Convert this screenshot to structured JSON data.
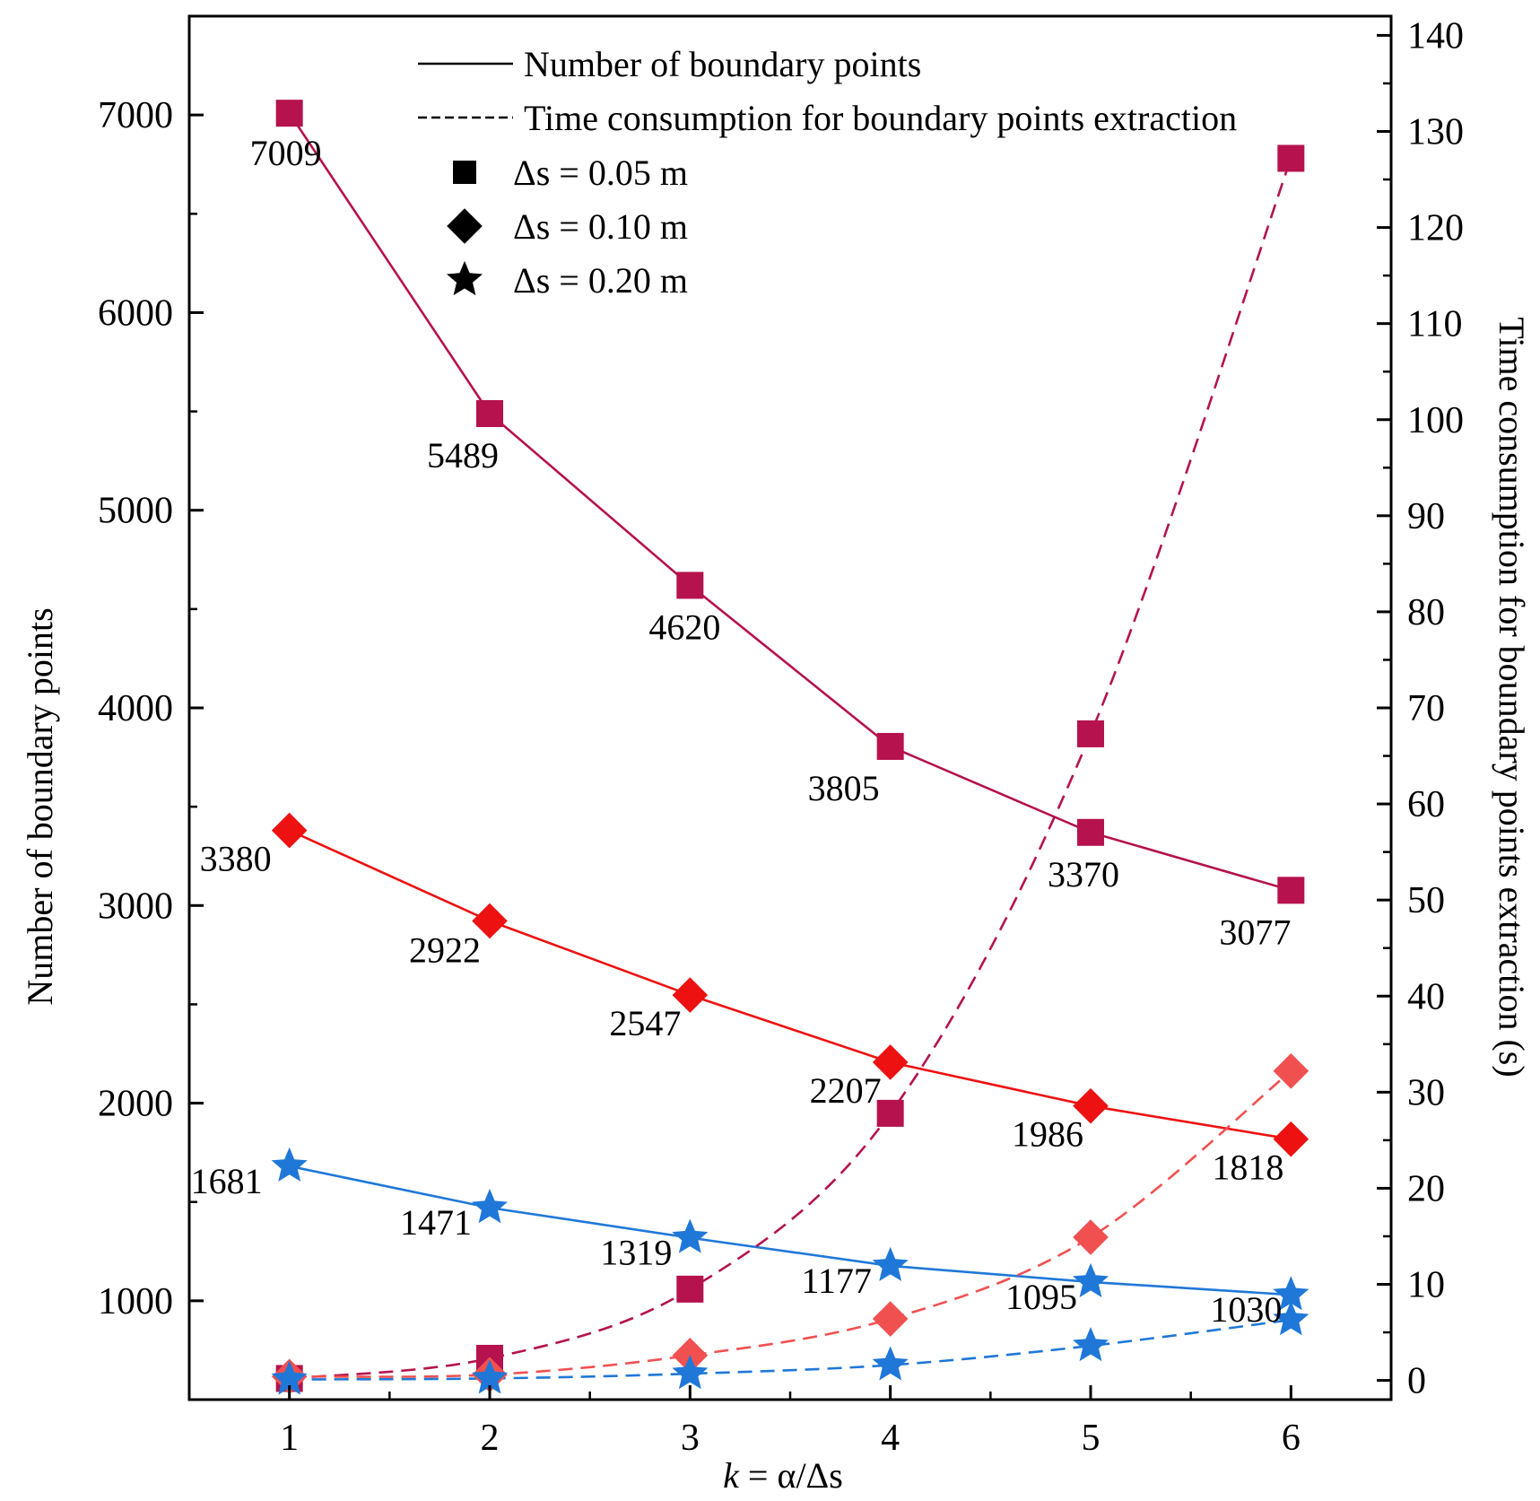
{
  "chart_data": {
    "type": "line",
    "x": [
      1,
      2,
      3,
      4,
      5,
      6
    ],
    "x_tick_labels": [
      "1",
      "2",
      "3",
      "4",
      "5",
      "6"
    ],
    "xlim": [
      0.5,
      6.5
    ],
    "xlabel_prefix": "k",
    "xlabel_suffix": " = α/Δs",
    "ylabel_left": "Number of boundary points",
    "ylabel_right": "Time consumption for boundary points extraction (s)",
    "ylim_left": [
      500,
      7500
    ],
    "ylim_right": [
      -2,
      142
    ],
    "left_ticks": [
      1000,
      2000,
      3000,
      4000,
      5000,
      6000,
      7000
    ],
    "left_tick_labels": [
      "1000",
      "2000",
      "3000",
      "4000",
      "5000",
      "6000",
      "7000"
    ],
    "right_ticks": [
      0,
      10,
      20,
      30,
      40,
      50,
      60,
      70,
      80,
      90,
      100,
      110,
      120,
      130,
      140
    ],
    "right_tick_labels": [
      "0",
      "10",
      "20",
      "30",
      "40",
      "50",
      "60",
      "70",
      "80",
      "90",
      "100",
      "110",
      "120",
      "130",
      "140"
    ],
    "colors": {
      "ds005": "#b5124e",
      "ds010": "#ee1111",
      "ds010_time": "#f05050",
      "ds020": "#1f78d8",
      "black": "#000000"
    },
    "legend": {
      "position": "top",
      "solid_label": "Number of boundary points",
      "dashed_label": "Time consumption for boundary points extraction",
      "square_label": "Δs = 0.05 m",
      "diamond_label": "Δs = 0.10 m",
      "star_label": "Δs = 0.20 m"
    },
    "series": [
      {
        "name": "Number of boundary points, Δs = 0.05 m",
        "axis": "left",
        "style": "solid",
        "marker": "square",
        "color_key": "ds005",
        "values": [
          7009,
          5489,
          4620,
          3805,
          3370,
          3077
        ],
        "labels": [
          "7009",
          "5489",
          "4620",
          "3805",
          "3370",
          "3077"
        ]
      },
      {
        "name": "Number of boundary points, Δs = 0.10 m",
        "axis": "left",
        "style": "solid",
        "marker": "diamond",
        "color_key": "ds010",
        "values": [
          3380,
          2922,
          2547,
          2207,
          1986,
          1818
        ],
        "labels": [
          "3380",
          "2922",
          "2547",
          "2207",
          "1986",
          "1818"
        ]
      },
      {
        "name": "Number of boundary points, Δs = 0.20 m",
        "axis": "left",
        "style": "solid",
        "marker": "star",
        "color_key": "ds020",
        "values": [
          1681,
          1471,
          1319,
          1177,
          1095,
          1030
        ],
        "labels": [
          "1681",
          "1471",
          "1319",
          "1177",
          "1095",
          "1030"
        ]
      },
      {
        "name": "Time consumption, Δs = 0.05 m",
        "axis": "right",
        "style": "dashed",
        "marker": "square",
        "color_key": "ds005",
        "values": [
          0.2,
          2.3,
          9.5,
          27.8,
          67.3,
          127.2
        ]
      },
      {
        "name": "Time consumption, Δs = 0.10 m",
        "axis": "right",
        "style": "dashed",
        "marker": "diamond",
        "color_key": "ds010_time",
        "values": [
          0.4,
          0.6,
          2.6,
          6.4,
          14.9,
          32.2
        ]
      },
      {
        "name": "Time consumption, Δs = 0.20 m",
        "axis": "right",
        "style": "dashed",
        "marker": "star",
        "color_key": "ds020",
        "values": [
          0.1,
          0.2,
          0.7,
          1.6,
          3.6,
          6.3
        ]
      }
    ]
  }
}
